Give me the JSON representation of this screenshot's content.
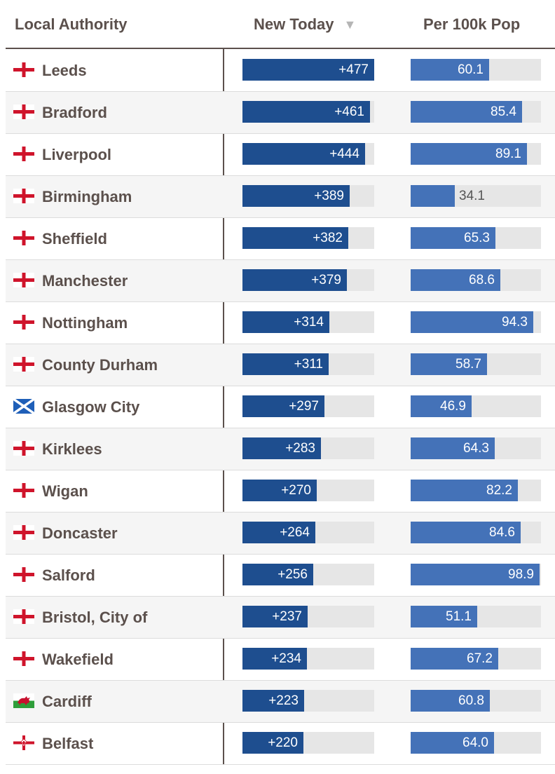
{
  "table": {
    "headers": {
      "name": "Local Authority",
      "new_today": "New Today",
      "sort_indicator": "▼",
      "per_100k": "Per 100k Pop"
    },
    "colors": {
      "new_bar": "#1e4e8f",
      "per_bar": "#4472b8",
      "track": "#e6e6e6",
      "text": "#5b504c"
    }
  },
  "chart_data": {
    "type": "table",
    "title": "",
    "columns": [
      "Local Authority",
      "New Today",
      "Per 100k Pop"
    ],
    "new_today_max": 477,
    "per_100k_max": 100,
    "rows": [
      {
        "name": "Leeds",
        "flag": "england-flag-icon",
        "new": 477,
        "new_label": "+477",
        "per": 60.1,
        "per_label": "60.1"
      },
      {
        "name": "Bradford",
        "flag": "england-flag-icon",
        "new": 461,
        "new_label": "+461",
        "per": 85.4,
        "per_label": "85.4"
      },
      {
        "name": "Liverpool",
        "flag": "england-flag-icon",
        "new": 444,
        "new_label": "+444",
        "per": 89.1,
        "per_label": "89.1"
      },
      {
        "name": "Birmingham",
        "flag": "england-flag-icon",
        "new": 389,
        "new_label": "+389",
        "per": 34.1,
        "per_label": "34.1"
      },
      {
        "name": "Sheffield",
        "flag": "england-flag-icon",
        "new": 382,
        "new_label": "+382",
        "per": 65.3,
        "per_label": "65.3"
      },
      {
        "name": "Manchester",
        "flag": "england-flag-icon",
        "new": 379,
        "new_label": "+379",
        "per": 68.6,
        "per_label": "68.6"
      },
      {
        "name": "Nottingham",
        "flag": "england-flag-icon",
        "new": 314,
        "new_label": "+314",
        "per": 94.3,
        "per_label": "94.3"
      },
      {
        "name": "County Durham",
        "flag": "england-flag-icon",
        "new": 311,
        "new_label": "+311",
        "per": 58.7,
        "per_label": "58.7"
      },
      {
        "name": "Glasgow City",
        "flag": "scotland-flag-icon",
        "new": 297,
        "new_label": "+297",
        "per": 46.9,
        "per_label": "46.9"
      },
      {
        "name": "Kirklees",
        "flag": "england-flag-icon",
        "new": 283,
        "new_label": "+283",
        "per": 64.3,
        "per_label": "64.3"
      },
      {
        "name": "Wigan",
        "flag": "england-flag-icon",
        "new": 270,
        "new_label": "+270",
        "per": 82.2,
        "per_label": "82.2"
      },
      {
        "name": "Doncaster",
        "flag": "england-flag-icon",
        "new": 264,
        "new_label": "+264",
        "per": 84.6,
        "per_label": "84.6"
      },
      {
        "name": "Salford",
        "flag": "england-flag-icon",
        "new": 256,
        "new_label": "+256",
        "per": 98.9,
        "per_label": "98.9"
      },
      {
        "name": "Bristol, City of",
        "flag": "england-flag-icon",
        "new": 237,
        "new_label": "+237",
        "per": 51.1,
        "per_label": "51.1"
      },
      {
        "name": "Wakefield",
        "flag": "england-flag-icon",
        "new": 234,
        "new_label": "+234",
        "per": 67.2,
        "per_label": "67.2"
      },
      {
        "name": "Cardiff",
        "flag": "wales-flag-icon",
        "new": 223,
        "new_label": "+223",
        "per": 60.8,
        "per_label": "60.8"
      },
      {
        "name": "Belfast",
        "flag": "northern-ireland-flag-icon",
        "new": 220,
        "new_label": "+220",
        "per": 64.0,
        "per_label": "64.0"
      }
    ]
  }
}
